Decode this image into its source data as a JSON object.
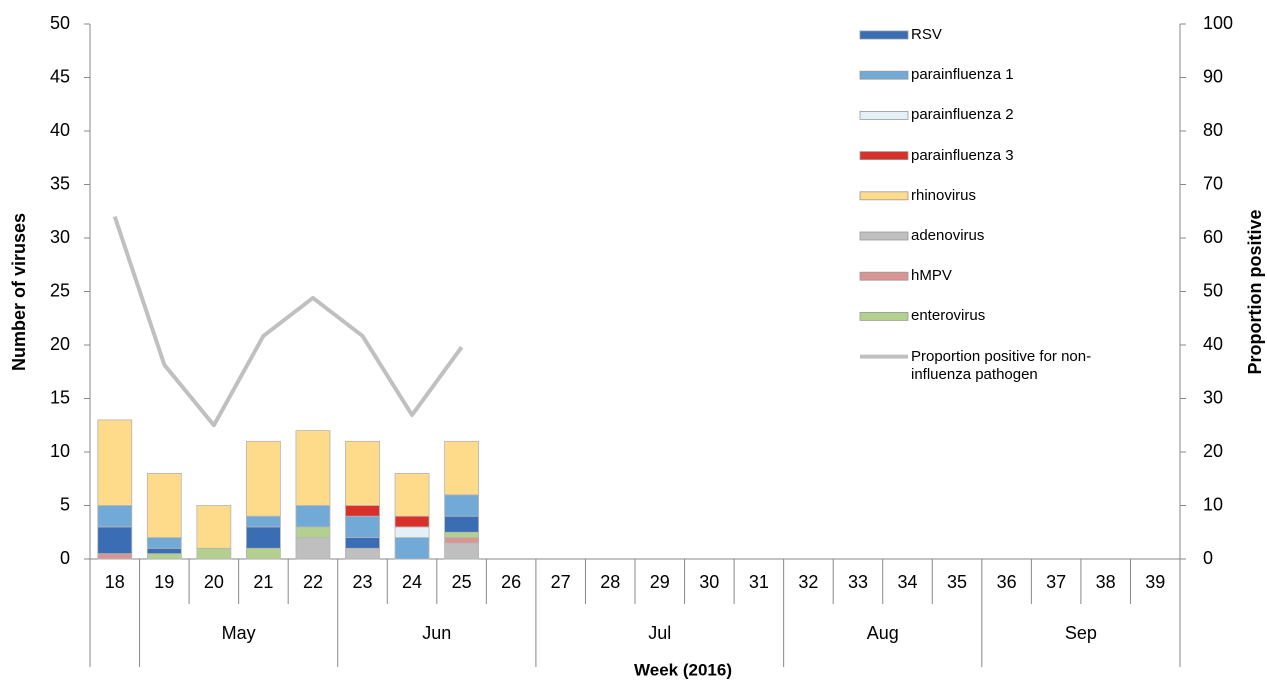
{
  "chart_data": {
    "type": "bar",
    "x_label": "Week (2016)",
    "y_label": "Number of viruses",
    "y2_label": "Proportion positive",
    "categories": [
      "18",
      "19",
      "20",
      "21",
      "22",
      "23",
      "24",
      "25",
      "26",
      "27",
      "28",
      "29",
      "30",
      "31",
      "32",
      "33",
      "34",
      "35",
      "36",
      "37",
      "38",
      "39"
    ],
    "x_groups": [
      {
        "label": null,
        "count": 1
      },
      {
        "label": "May",
        "count": 4
      },
      {
        "label": "Jun",
        "count": 4
      },
      {
        "label": "Jul",
        "count": 5
      },
      {
        "label": "Aug",
        "count": 4
      },
      {
        "label": "Sep",
        "count": 4
      }
    ],
    "series": [
      {
        "name": "RSV",
        "color": "#3b6db5",
        "values": [
          2.5,
          0.5,
          0,
          2,
          0,
          1,
          0,
          1.5,
          0,
          0,
          0,
          0,
          0,
          0,
          0,
          0,
          0,
          0,
          0,
          0,
          0,
          0
        ]
      },
      {
        "name": "parainfluenza 1",
        "color": "#72aad7",
        "values": [
          2,
          1,
          0,
          1,
          2,
          2,
          2,
          2,
          0,
          0,
          0,
          0,
          0,
          0,
          0,
          0,
          0,
          0,
          0,
          0,
          0,
          0
        ]
      },
      {
        "name": "parainfluenza 2",
        "color": "#e3f1f6",
        "values": [
          0,
          0,
          0,
          0,
          0,
          0,
          1,
          0,
          0,
          0,
          0,
          0,
          0,
          0,
          0,
          0,
          0,
          0,
          0,
          0,
          0,
          0
        ]
      },
      {
        "name": "parainfluenza 3",
        "color": "#d93129",
        "values": [
          0,
          0,
          0,
          0,
          0,
          1,
          1,
          0,
          0,
          0,
          0,
          0,
          0,
          0,
          0,
          0,
          0,
          0,
          0,
          0,
          0,
          0
        ]
      },
      {
        "name": "rhinovirus",
        "color": "#fddb8b",
        "values": [
          8,
          6,
          4,
          7,
          7,
          6,
          4,
          5,
          0,
          0,
          0,
          0,
          0,
          0,
          0,
          0,
          0,
          0,
          0,
          0,
          0,
          0
        ]
      },
      {
        "name": "adenovirus",
        "color": "#bfbfbf",
        "values": [
          0,
          0,
          0,
          0,
          2,
          1,
          0,
          1.5,
          0,
          0,
          0,
          0,
          0,
          0,
          0,
          0,
          0,
          0,
          0,
          0,
          0,
          0
        ]
      },
      {
        "name": "hMPV",
        "color": "#d99594",
        "values": [
          0.5,
          0,
          0,
          0,
          0,
          0,
          0,
          0.5,
          0,
          0,
          0,
          0,
          0,
          0,
          0,
          0,
          0,
          0,
          0,
          0,
          0,
          0
        ]
      },
      {
        "name": "enterovirus",
        "color": "#b3d08f",
        "values": [
          0,
          0.5,
          1,
          1,
          1,
          0,
          0,
          0.5,
          0,
          0,
          0,
          0,
          0,
          0,
          0,
          0,
          0,
          0,
          0,
          0,
          0,
          0
        ]
      },
      {
        "name": "Proportion positive for non-influenza pathogen",
        "color": "#c0c0c0",
        "type": "line",
        "axis": "y2",
        "values": [
          64,
          36.3,
          25,
          41.7,
          48.8,
          41.7,
          26.9,
          39.6,
          null,
          null,
          null,
          null,
          null,
          null,
          null,
          null,
          null,
          null,
          null,
          null,
          null,
          null
        ]
      }
    ],
    "ylim": [
      0,
      50
    ],
    "yticks": [
      0,
      5,
      10,
      15,
      20,
      25,
      30,
      35,
      40,
      45,
      50
    ],
    "y2lim": [
      0,
      100
    ],
    "y2ticks": [
      0,
      10,
      20,
      30,
      40,
      50,
      60,
      70,
      80,
      90,
      100
    ],
    "legend": "top-right"
  }
}
